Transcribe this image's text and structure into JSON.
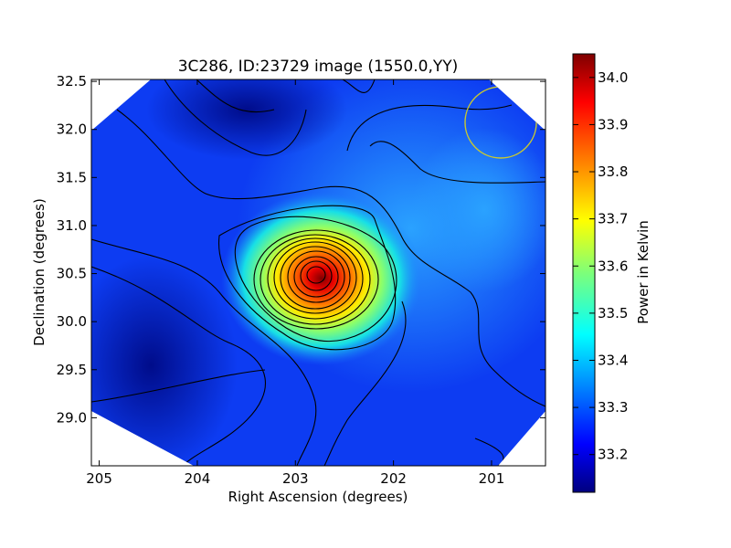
{
  "chart_data": {
    "type": "heatmap",
    "title": "3C286, ID:23729 image (1550.0,YY)",
    "xlabel": "Right Ascension (degrees)",
    "ylabel": "Declination (degrees)",
    "xlim": [
      205.08,
      200.45
    ],
    "ylim": [
      28.5,
      32.52
    ],
    "x_reversed": true,
    "x_ticks": [
      {
        "value": 205,
        "label": "205"
      },
      {
        "value": 204,
        "label": "204"
      },
      {
        "value": 203,
        "label": "203"
      },
      {
        "value": 202,
        "label": "202"
      },
      {
        "value": 201,
        "label": "201"
      }
    ],
    "y_ticks": [
      {
        "value": 29.0,
        "label": "29.0"
      },
      {
        "value": 29.5,
        "label": "29.5"
      },
      {
        "value": 30.0,
        "label": "30.0"
      },
      {
        "value": 30.5,
        "label": "30.5"
      },
      {
        "value": 31.0,
        "label": "31.0"
      },
      {
        "value": 31.5,
        "label": "31.5"
      },
      {
        "value": 32.0,
        "label": "32.0"
      },
      {
        "value": 32.5,
        "label": "32.5"
      }
    ],
    "source_peak": {
      "ra": 202.75,
      "dec": 30.48,
      "value": 34.02
    },
    "beam_circle": {
      "ra": 200.88,
      "dec": 32.07,
      "radius_deg": 0.33,
      "color": "#c8c832"
    },
    "colorbar": {
      "label": "Power in Kelvin",
      "range": [
        33.12,
        34.05
      ],
      "ticks": [
        {
          "value": 33.2,
          "label": "33.2"
        },
        {
          "value": 33.3,
          "label": "33.3"
        },
        {
          "value": 33.4,
          "label": "33.4"
        },
        {
          "value": 33.5,
          "label": "33.5"
        },
        {
          "value": 33.6,
          "label": "33.6"
        },
        {
          "value": 33.7,
          "label": "33.7"
        },
        {
          "value": 33.8,
          "label": "33.8"
        },
        {
          "value": 33.9,
          "label": "33.9"
        },
        {
          "value": 34.0,
          "label": "34.0"
        }
      ],
      "colormap": "jet"
    },
    "contours": true,
    "grid": false
  }
}
